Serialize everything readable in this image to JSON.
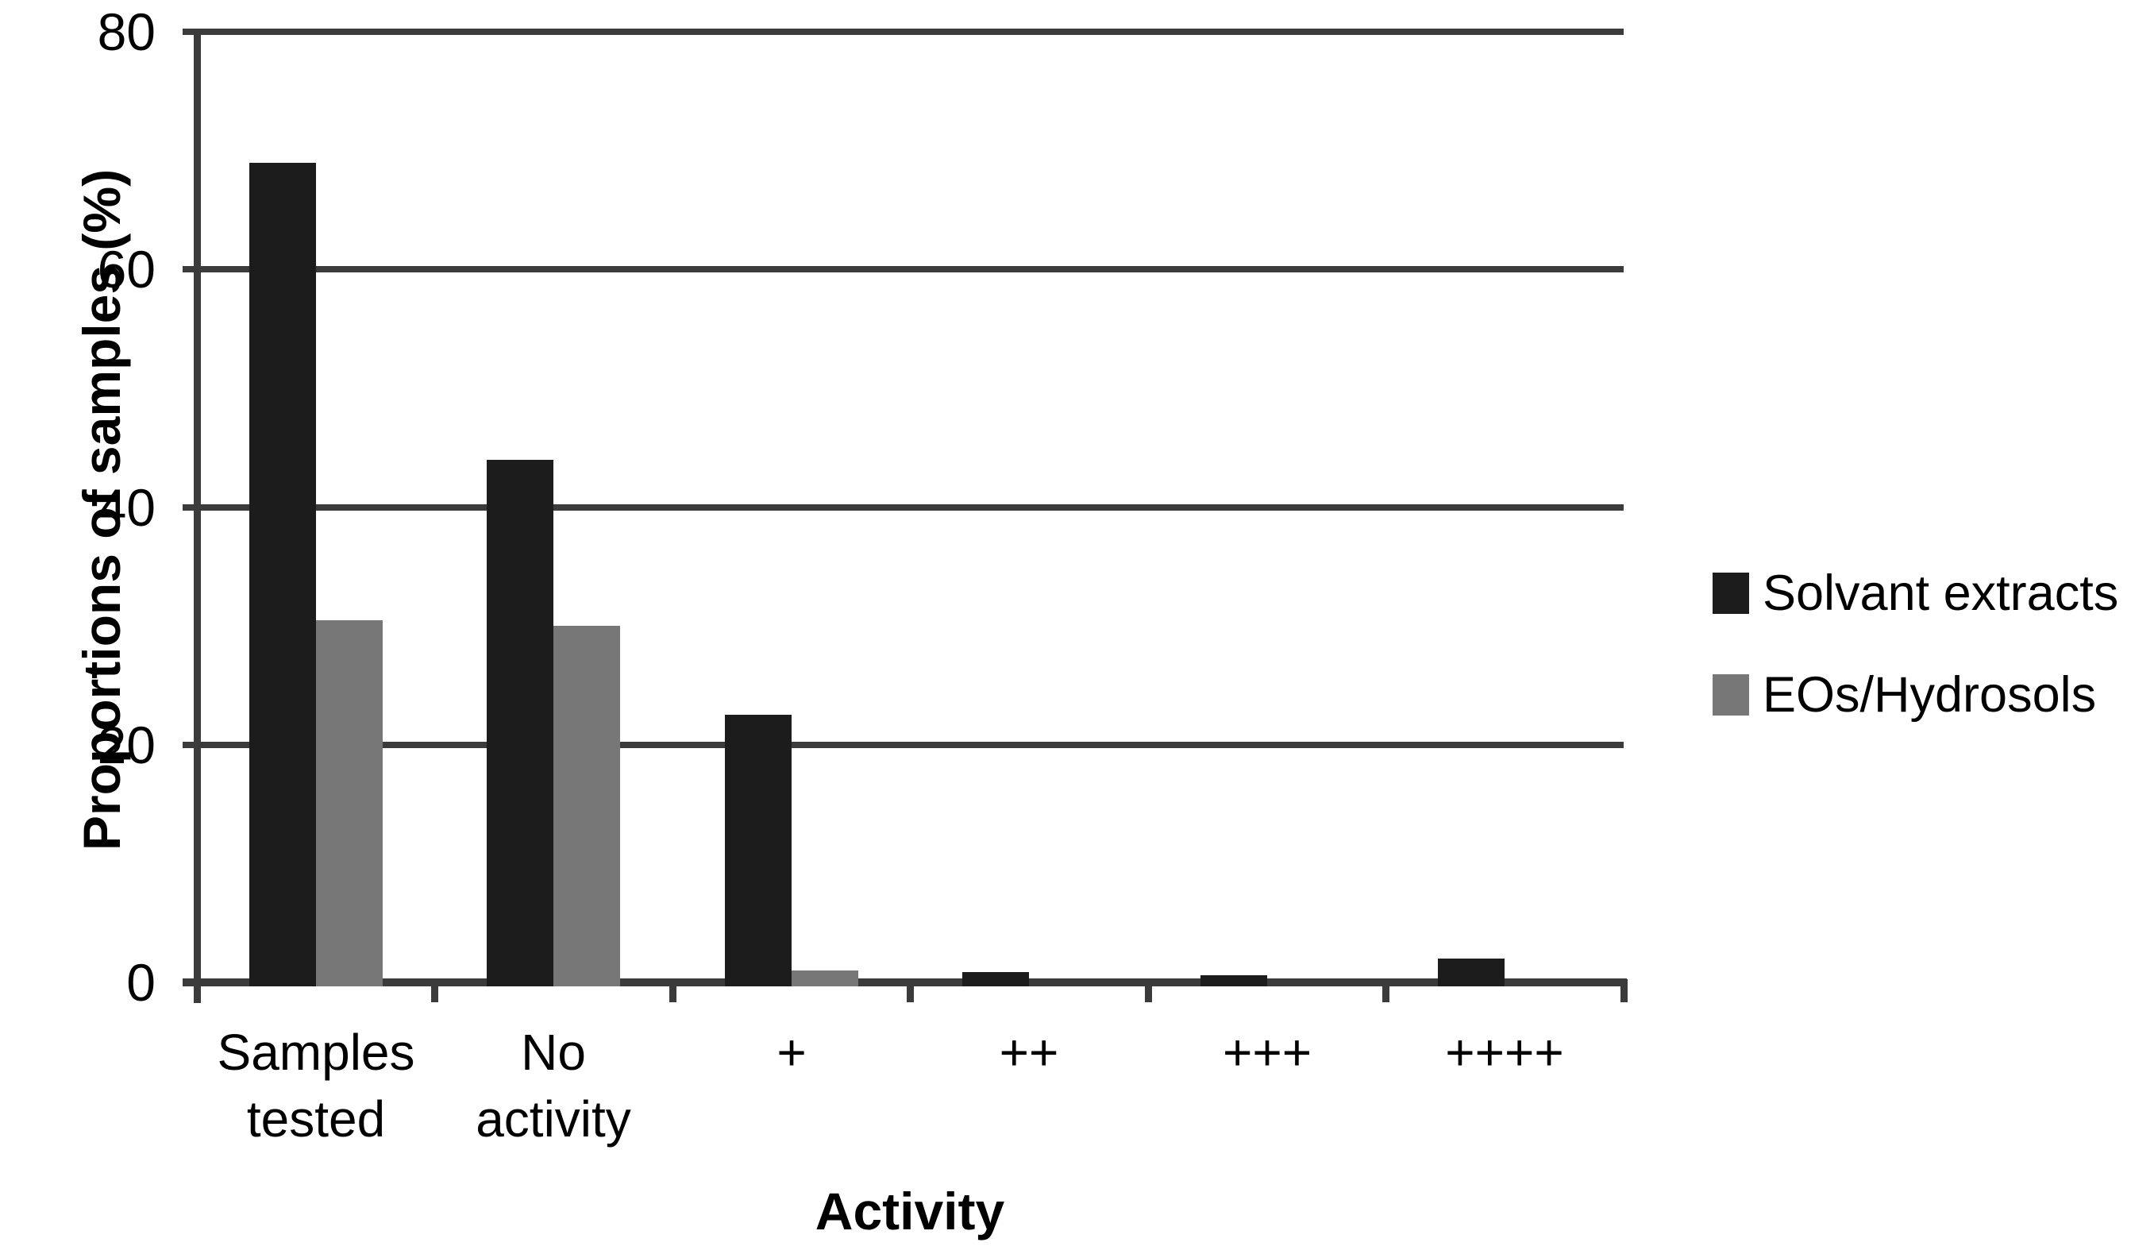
{
  "figure": {
    "background": "#ffffff"
  },
  "chart_data": {
    "type": "bar",
    "title": "",
    "xlabel": "Activity",
    "ylabel": "Proportions of samples (%)",
    "categories": [
      "Samples\ntested",
      "No\nactivity",
      "+",
      "++",
      "+++",
      "++++"
    ],
    "series": [
      {
        "name": "Solvant extracts",
        "color": "#1c1c1c",
        "values": [
          69,
          44,
          22.5,
          0.9,
          0.6,
          2
        ]
      },
      {
        "name": "EOs/Hydrosols",
        "color": "#777777",
        "values": [
          30.5,
          30,
          1,
          0,
          0,
          0
        ]
      }
    ],
    "ylim": [
      0,
      80
    ],
    "yticks": [
      0,
      20,
      40,
      60,
      80
    ],
    "grid": true,
    "legend_position": "right",
    "axis_color": "#3b3b3b",
    "text_color": "#000000"
  }
}
